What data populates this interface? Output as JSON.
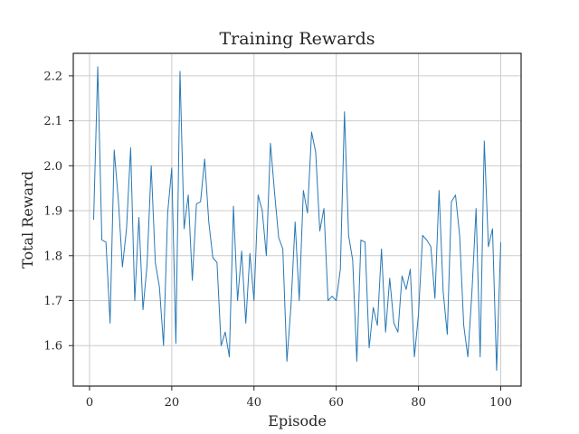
{
  "chart_data": {
    "type": "line",
    "title": "Training Rewards",
    "xlabel": "Episode",
    "ylabel": "Total Reward",
    "xlim": [
      -3.95,
      104.95
    ],
    "ylim": [
      1.51,
      2.25
    ],
    "xticks": [
      0,
      20,
      40,
      60,
      80,
      100
    ],
    "yticks": [
      1.6,
      1.7,
      1.8,
      1.9,
      2.0,
      2.1,
      2.2
    ],
    "ytick_labels": [
      "1.6",
      "1.7",
      "1.8",
      "1.9",
      "2.0",
      "2.1",
      "2.2"
    ],
    "grid": true,
    "legend": "none",
    "color": "#2878b5",
    "series": [
      {
        "x": [
          1,
          2,
          3,
          4,
          5,
          6,
          7,
          8,
          9,
          10,
          11,
          12,
          13,
          14,
          15,
          16,
          17,
          18,
          19,
          20,
          21,
          22,
          23,
          24,
          25,
          26,
          27,
          28,
          29,
          30,
          31,
          32,
          33,
          34,
          35,
          36,
          37,
          38,
          39,
          40,
          41,
          42,
          43,
          44,
          45,
          46,
          47,
          48,
          49,
          50,
          51,
          52,
          53,
          54,
          55,
          56,
          57,
          58,
          59,
          60,
          61,
          62,
          63,
          64,
          65,
          66,
          67,
          68,
          69,
          70,
          71,
          72,
          73,
          74,
          75,
          76,
          77,
          78,
          79,
          80,
          81,
          82,
          83,
          84,
          85,
          86,
          87,
          88,
          89,
          90,
          91,
          92,
          93,
          94,
          95,
          96,
          97,
          98,
          99,
          100
        ],
        "y": [
          1.88,
          2.22,
          1.835,
          1.83,
          1.65,
          2.035,
          1.925,
          1.775,
          1.86,
          2.04,
          1.7,
          1.885,
          1.68,
          1.78,
          2.0,
          1.785,
          1.73,
          1.6,
          1.895,
          1.995,
          1.605,
          2.21,
          1.86,
          1.935,
          1.745,
          1.915,
          1.92,
          2.015,
          1.875,
          1.795,
          1.785,
          1.6,
          1.63,
          1.575,
          1.91,
          1.7,
          1.81,
          1.65,
          1.805,
          1.7,
          1.935,
          1.9,
          1.8,
          2.05,
          1.94,
          1.84,
          1.815,
          1.565,
          1.69,
          1.875,
          1.7,
          1.945,
          1.895,
          2.075,
          2.03,
          1.855,
          1.905,
          1.7,
          1.71,
          1.7,
          1.77,
          2.12,
          1.845,
          1.79,
          1.565,
          1.835,
          1.83,
          1.595,
          1.685,
          1.645,
          1.815,
          1.63,
          1.75,
          1.65,
          1.63,
          1.755,
          1.725,
          1.77,
          1.575,
          1.67,
          1.845,
          1.835,
          1.82,
          1.705,
          1.945,
          1.72,
          1.625,
          1.92,
          1.935,
          1.845,
          1.645,
          1.575,
          1.72,
          1.905,
          1.575,
          2.055,
          1.82,
          1.86,
          1.545,
          1.83
        ]
      }
    ]
  }
}
